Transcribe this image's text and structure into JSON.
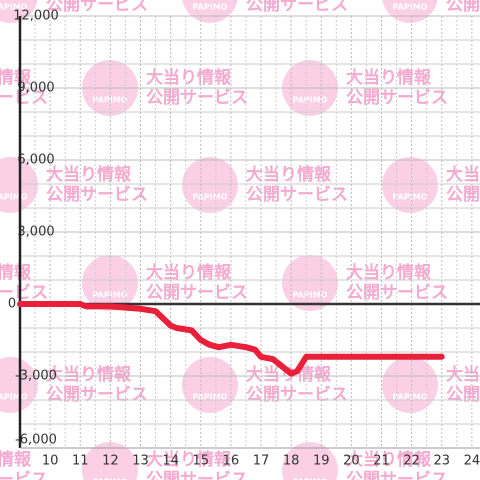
{
  "watermark": {
    "brand": "PAPIMO",
    "line1": "大当り情報",
    "line2": "公開サービス"
  },
  "chart_data": {
    "type": "line",
    "x": [
      9,
      11,
      11.2,
      12,
      13,
      13.5,
      14,
      14.2,
      14.7,
      15,
      15.3,
      15.6,
      16,
      16.5,
      16.8,
      17,
      17.4,
      17.7,
      18,
      18.2,
      18.5,
      19,
      23
    ],
    "series": [
      {
        "color": "#e8203a",
        "values": [
          0,
          0,
          -100,
          -100,
          -200,
          -300,
          -900,
          -1000,
          -1100,
          -1500,
          -1700,
          -1800,
          -1700,
          -1800,
          -1900,
          -2200,
          -2300,
          -2600,
          -2900,
          -2800,
          -2200,
          -2200,
          -2200
        ]
      }
    ],
    "xlim": [
      9,
      24.27
    ],
    "xticks": [
      10,
      11,
      12,
      13,
      14,
      15,
      16,
      17,
      18,
      19,
      20,
      21,
      22,
      23,
      24
    ],
    "minor_xticks": [
      9.5,
      10.5,
      11.5,
      12.5,
      13.5,
      14.5,
      15.5,
      16.5,
      17.5,
      18.5,
      19.5,
      20.5,
      21.5,
      22.5,
      23.5
    ],
    "ylim": [
      -6000,
      12000
    ],
    "yticks": [
      {
        "value": -6000,
        "label": "-6,000"
      },
      {
        "value": -3000,
        "label": "-3,000"
      },
      0,
      {
        "value": 3000,
        "label": "3,000"
      },
      {
        "value": 6000,
        "label": "6,000"
      },
      {
        "value": 9000,
        "label": "9,000"
      },
      {
        "value": 12000,
        "label": "12,000"
      }
    ],
    "minor_yticks": [
      -5000,
      -4000,
      -2000,
      -1000,
      1000,
      2000,
      4000,
      5000,
      7000,
      8000,
      10000,
      11000
    ],
    "grid": true
  }
}
